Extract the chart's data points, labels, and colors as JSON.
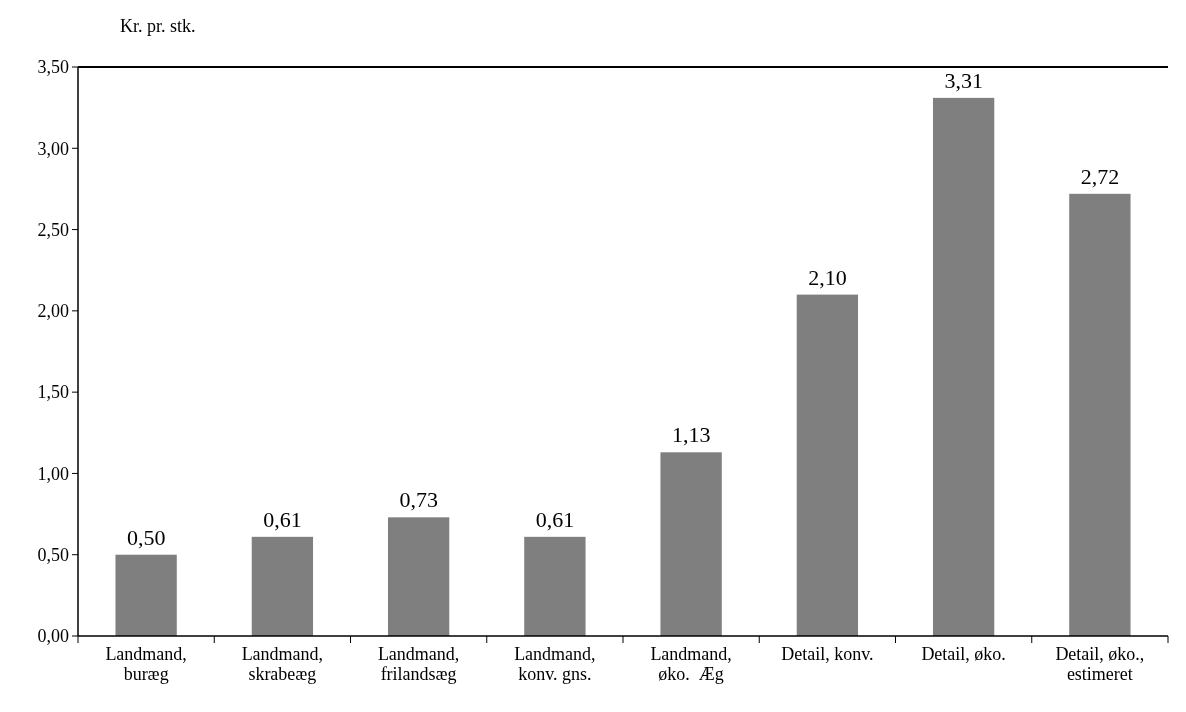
{
  "chart_data": {
    "type": "bar",
    "ylabel": "Kr. pr. stk.",
    "categories": [
      "Landmand,\nburæg",
      "Landmand,\nskrabeæg",
      "Landmand,\nfrilandsæg",
      "Landmand,\nkonv. gns.",
      "Landmand,\nøko.  Æg",
      "Detail, konv.",
      "Detail, øko.",
      "Detail, øko.,\nestimeret"
    ],
    "values": [
      0.5,
      0.61,
      0.73,
      0.61,
      1.13,
      2.1,
      3.31,
      2.72
    ],
    "value_labels": [
      "0,50",
      "0,61",
      "0,73",
      "0,61",
      "1,13",
      "2,10",
      "3,31",
      "2,72"
    ],
    "color": "#7f7f7f",
    "ylim": [
      0,
      3.5
    ],
    "yticks": [
      {
        "value": 0,
        "label": "0,00"
      },
      {
        "value": 0.5,
        "label": "0,50"
      },
      {
        "value": 1,
        "label": "1,00"
      },
      {
        "value": 1.5,
        "label": "1,50"
      },
      {
        "value": 2,
        "label": "2,00"
      },
      {
        "value": 2.5,
        "label": "2,50"
      },
      {
        "value": 3,
        "label": "3,00"
      },
      {
        "value": 3.5,
        "label": "3,50"
      }
    ],
    "grid": false
  }
}
